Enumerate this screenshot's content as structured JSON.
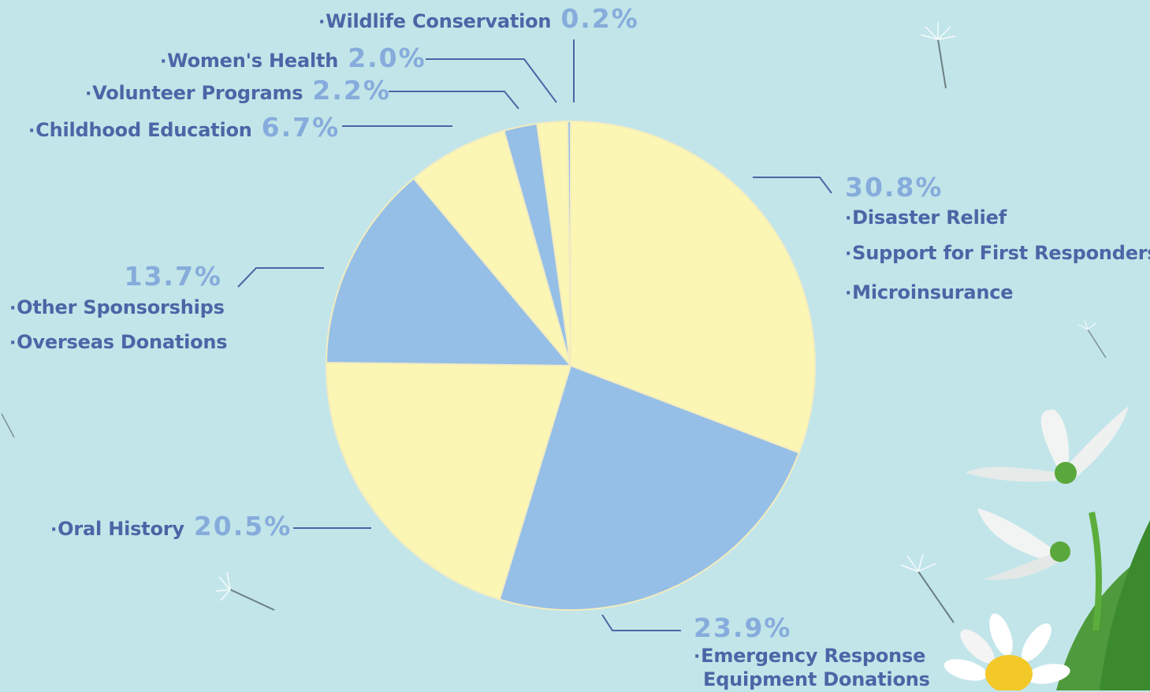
{
  "chart_data": {
    "type": "pie",
    "start": "12 o'clock",
    "direction": "clockwise",
    "colors": {
      "yellow": "#fcf6b4",
      "blue": "#95bfe6",
      "accent_text": "#4a66a6",
      "pct_text": "#86acdc",
      "background": "#c2e5e9"
    },
    "slices": [
      {
        "value": 30.8,
        "value_label": "30.8%",
        "color": "yellow",
        "labels": [
          "Disaster Relief",
          "Support for First Responders",
          "Microinsurance"
        ]
      },
      {
        "value": 23.9,
        "value_label": "23.9%",
        "color": "blue",
        "labels": [
          "Emergency Response",
          "Equipment Donations"
        ]
      },
      {
        "value": 20.5,
        "value_label": "20.5%",
        "color": "yellow",
        "labels": [
          "Oral History"
        ]
      },
      {
        "value": 13.7,
        "value_label": "13.7%",
        "color": "blue",
        "labels": [
          "Other Sponsorships",
          "Overseas Donations"
        ]
      },
      {
        "value": 6.7,
        "value_label": "6.7%",
        "color": "yellow",
        "labels": [
          "Childhood Education"
        ]
      },
      {
        "value": 2.2,
        "value_label": "2.2%",
        "color": "blue",
        "labels": [
          "Volunteer Programs"
        ]
      },
      {
        "value": 2.0,
        "value_label": "2.0%",
        "color": "yellow",
        "labels": [
          "Women's Health"
        ]
      },
      {
        "value": 0.2,
        "value_label": "0.2%",
        "color": "blue",
        "labels": [
          "Wildlife Conservation"
        ]
      }
    ]
  },
  "decorations": {
    "icons": [
      "dandelion-seed-icon",
      "white-flower-icon",
      "daisy-icon",
      "leaf-icon"
    ]
  }
}
